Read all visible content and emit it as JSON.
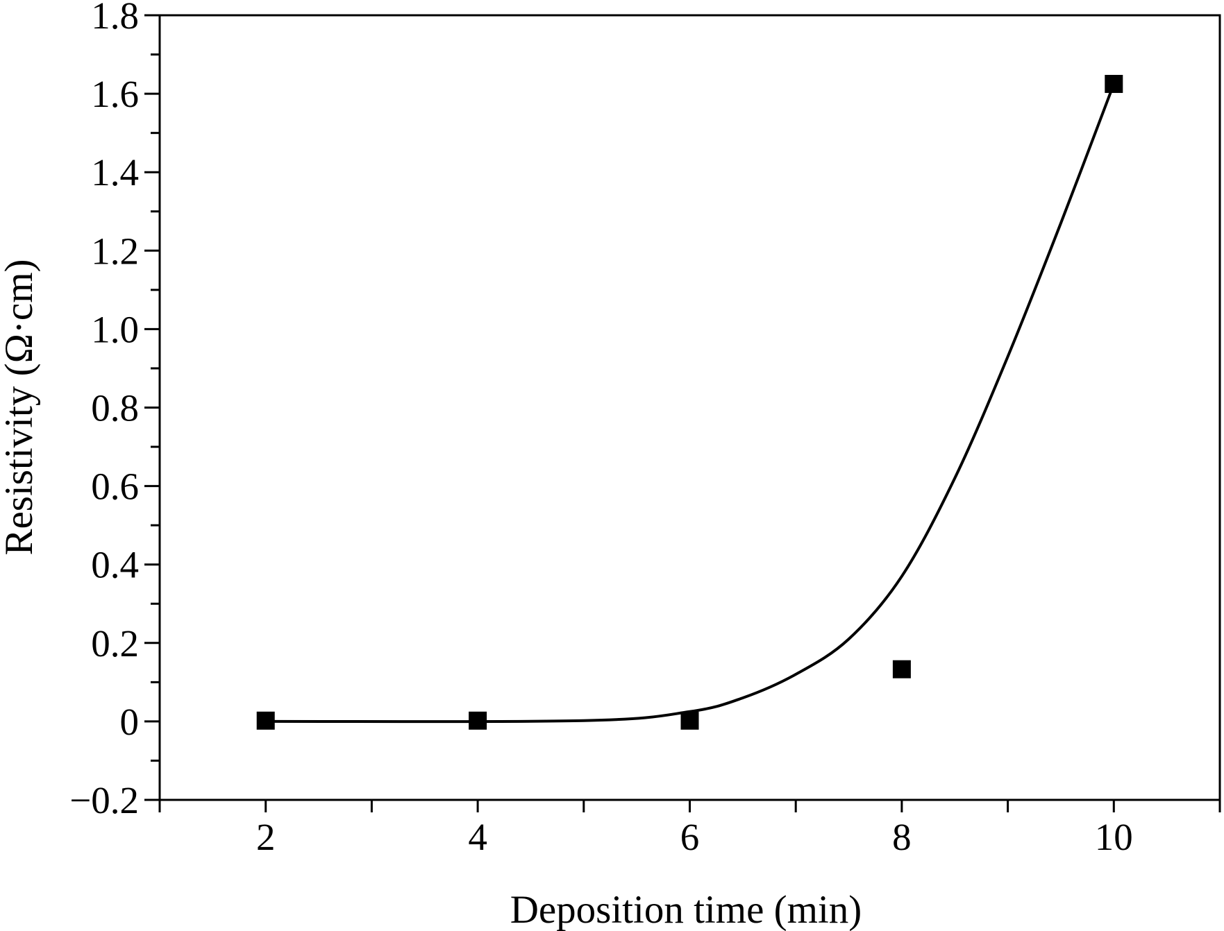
{
  "chart_data": {
    "type": "scatter",
    "xlabel": "Deposition time (min)",
    "ylabel": "Resistivity (Ω·cm)",
    "xlim": [
      1,
      11
    ],
    "ylim": [
      -0.2,
      1.8
    ],
    "xticks": [
      2,
      4,
      6,
      8,
      10
    ],
    "xtick_labels": [
      "2",
      "4",
      "6",
      "8",
      "10"
    ],
    "yticks": [
      -0.2,
      0,
      0.2,
      0.4,
      0.6,
      0.8,
      1.0,
      1.2,
      1.4,
      1.6,
      1.8
    ],
    "ytick_labels": [
      "−0.2",
      "0",
      "0.2",
      "0.4",
      "0.6",
      "0.8",
      "1.0",
      "1.2",
      "1.4",
      "1.6",
      "1.8"
    ],
    "grid": false,
    "colors": {
      "marker": "#000000",
      "line": "#000000",
      "axes": "#000000"
    },
    "series": [
      {
        "style": "square-markers",
        "x": [
          2,
          4,
          6,
          8,
          10
        ],
        "y": [
          0.002,
          0.002,
          0.002,
          0.133,
          1.625
        ]
      },
      {
        "style": "fit-line",
        "x": [
          2,
          5,
          6,
          6.5,
          7,
          7.5,
          8,
          8.5,
          9,
          9.5,
          10
        ],
        "y": [
          0.0,
          0.002,
          0.025,
          0.06,
          0.12,
          0.21,
          0.37,
          0.62,
          0.93,
          1.27,
          1.625
        ]
      }
    ]
  }
}
